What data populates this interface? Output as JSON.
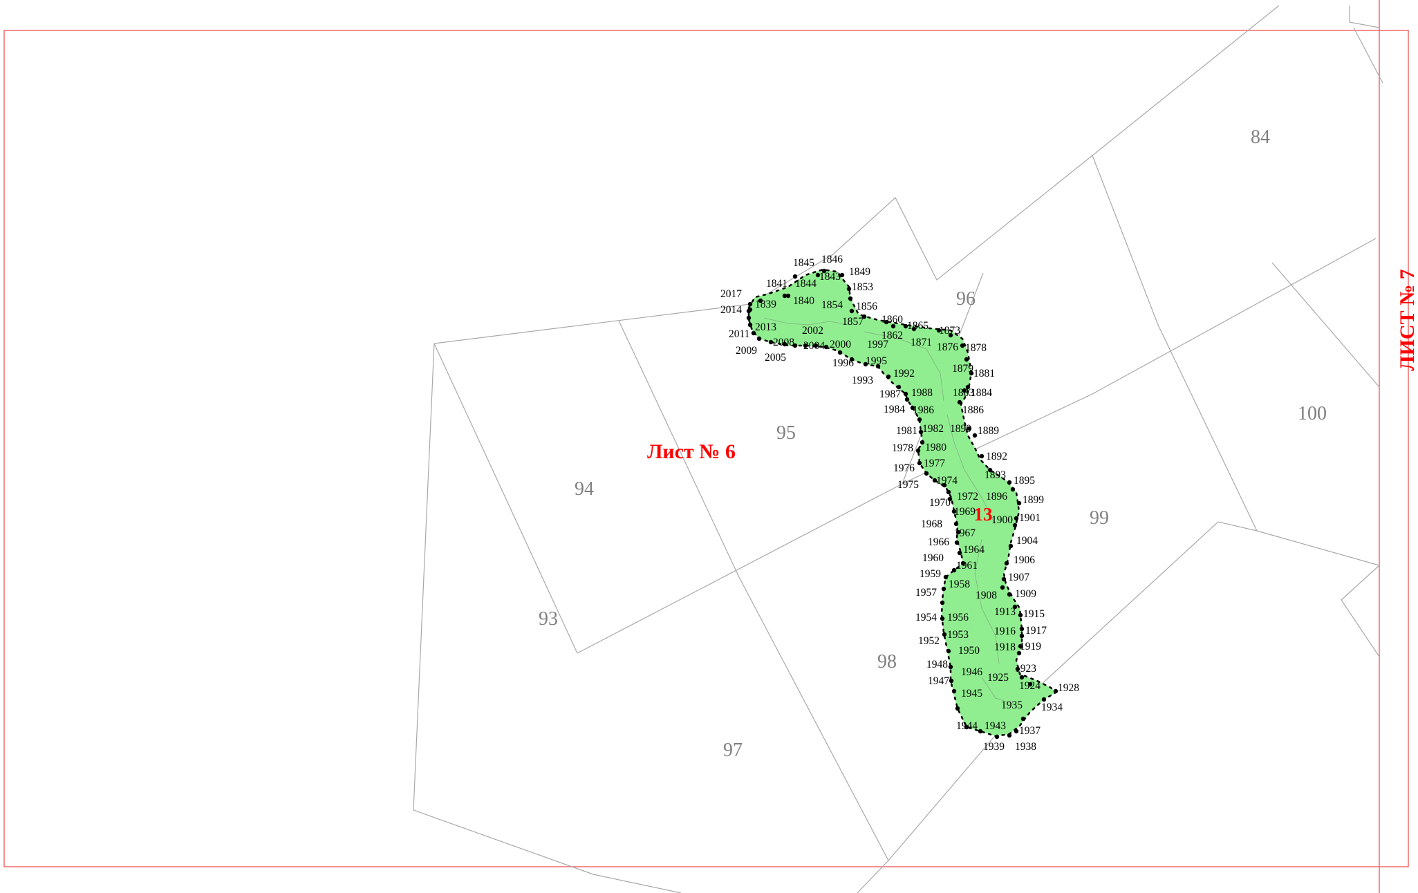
{
  "colors": {
    "frame": "#f06a6a",
    "parcel_border": "#a8a8a8",
    "zone_fill": "#90ee90",
    "zone_outline": "#000000",
    "sheet_label": "#ff0000",
    "parcel_label": "#808080"
  },
  "sheets": {
    "current": "Лист № 6",
    "adjacent": "ЛИСТ № 7"
  },
  "zone": {
    "number": "13"
  },
  "parcels": [
    "84",
    "93",
    "94",
    "95",
    "96",
    "97",
    "98",
    "99",
    "100"
  ],
  "points": [
    "1839",
    "1840",
    "1841",
    "1843",
    "1844",
    "1845",
    "1846",
    "1849",
    "1853",
    "1854",
    "1856",
    "1857",
    "1860",
    "1862",
    "1865",
    "1871",
    "1873",
    "1876",
    "1878",
    "1879",
    "1881",
    "1883",
    "1884",
    "1886",
    "1889",
    "1890",
    "1892",
    "1893",
    "1895",
    "1896",
    "1899",
    "1900",
    "1901",
    "1904",
    "1906",
    "1907",
    "1908",
    "1909",
    "1913",
    "1915",
    "1916",
    "1917",
    "1918",
    "1919",
    "1923",
    "1924",
    "1925",
    "1928",
    "1934",
    "1935",
    "1937",
    "1938",
    "1939",
    "1943",
    "1944",
    "1945",
    "1946",
    "1947",
    "1948",
    "1950",
    "1952",
    "1953",
    "1954",
    "1956",
    "1957",
    "1958",
    "1959",
    "1960",
    "1961",
    "1964",
    "1966",
    "1967",
    "1968",
    "1969",
    "1970",
    "1972",
    "1974",
    "1975",
    "1976",
    "1977",
    "1978",
    "1980",
    "1981",
    "1982",
    "1984",
    "1986",
    "1987",
    "1988",
    "1992",
    "1993",
    "1995",
    "1996",
    "1997",
    "2000",
    "2002",
    "2004",
    "2005",
    "2008",
    "2009",
    "2011",
    "2013",
    "2014",
    "2017"
  ]
}
